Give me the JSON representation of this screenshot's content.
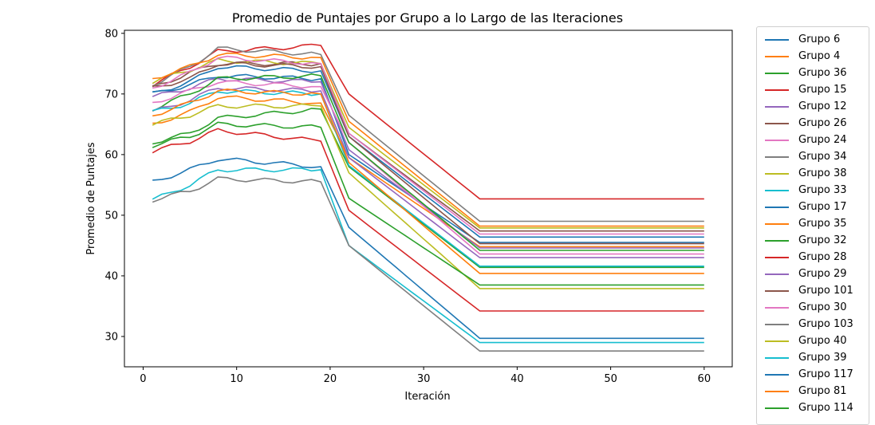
{
  "chart_data": {
    "type": "line",
    "title": "Promedio de Puntajes por Grupo a lo Largo de las Iteraciones",
    "xlabel": "Iteración",
    "ylabel": "Promedio de Puntajes",
    "xlim": [
      -2,
      63
    ],
    "ylim": [
      25,
      80.5
    ],
    "xticks": [
      0,
      10,
      20,
      30,
      40,
      50,
      60
    ],
    "yticks": [
      30,
      40,
      50,
      60,
      70,
      80
    ],
    "grid": false,
    "legend_position": "outside-right",
    "series": [
      {
        "name": "Grupo 6",
        "color": "#1f77b4",
        "base": [
          70,
          71.5,
          73,
          72.5,
          60,
          52.5
        ],
        "final": 45.5
      },
      {
        "name": "Grupo 4",
        "color": "#ff7f0e",
        "base": [
          65,
          67,
          69.5,
          68.5,
          59.5,
          51.5
        ],
        "final": 44.8
      },
      {
        "name": "Grupo 36",
        "color": "#2ca02c",
        "base": [
          62,
          63.5,
          66,
          67.5,
          58,
          48.5
        ],
        "final": 41.4
      },
      {
        "name": "Grupo 15",
        "color": "#d62728",
        "base": [
          71.5,
          74.5,
          77,
          78,
          70,
          60
        ],
        "final": 52.7
      },
      {
        "name": "Grupo 12",
        "color": "#9467bd",
        "base": [
          69.5,
          71,
          72.5,
          72,
          60.8,
          51.7
        ],
        "final": 44.6
      },
      {
        "name": "Grupo 26",
        "color": "#8c564b",
        "base": [
          71,
          73.5,
          75,
          75,
          63.5,
          54.5
        ],
        "final": 47.4
      },
      {
        "name": "Grupo 24",
        "color": "#e377c2",
        "base": [
          68.5,
          70.5,
          72,
          71.2,
          62,
          50.5
        ],
        "final": 43.6
      },
      {
        "name": "Grupo 34",
        "color": "#7f7f7f",
        "base": [
          71.5,
          74.5,
          77.5,
          76.5,
          66.5,
          56
        ],
        "final": 49.0
      },
      {
        "name": "Grupo 38",
        "color": "#bcbd22",
        "base": [
          72,
          74,
          75.5,
          75,
          64.5,
          54.8
        ],
        "final": 47.9
      },
      {
        "name": "Grupo 33",
        "color": "#17becf",
        "base": [
          52.5,
          55,
          57.5,
          57.5,
          45,
          36.2
        ],
        "final": 29.0
      },
      {
        "name": "Grupo 17",
        "color": "#1f77b4",
        "base": [
          70,
          72,
          74.5,
          73.8,
          63,
          53.5
        ],
        "final": 46.4
      },
      {
        "name": "Grupo 35",
        "color": "#ff7f0e",
        "base": [
          72.5,
          74.5,
          76.5,
          76,
          65.5,
          55.2
        ],
        "final": 48.2
      },
      {
        "name": "Grupo 32",
        "color": "#2ca02c",
        "base": [
          67.5,
          70,
          72.5,
          73,
          62,
          51.5
        ],
        "final": 44.2
      },
      {
        "name": "Grupo 28",
        "color": "#d62728",
        "base": [
          60.5,
          62.2,
          64,
          62.2,
          50.8,
          41.2
        ],
        "final": 34.2
      },
      {
        "name": "Grupo 29",
        "color": "#9467bd",
        "base": [
          67,
          69,
          71,
          70.5,
          59.5,
          50.2
        ],
        "final": 43.0
      },
      {
        "name": "Grupo 101",
        "color": "#8c564b",
        "base": [
          71,
          72.5,
          75,
          74.5,
          63,
          52.5
        ],
        "final": 45.3
      },
      {
        "name": "Grupo 30",
        "color": "#e377c2",
        "base": [
          71,
          73.5,
          76,
          75,
          63.5,
          54
        ],
        "final": 46.9
      },
      {
        "name": "Grupo 103",
        "color": "#7f7f7f",
        "base": [
          52.5,
          54,
          56,
          55.5,
          45,
          34.8
        ],
        "final": 27.6
      },
      {
        "name": "Grupo 40",
        "color": "#bcbd22",
        "base": [
          65,
          66.5,
          68,
          68,
          57,
          45
        ],
        "final": 37.9
      },
      {
        "name": "Grupo 39",
        "color": "#17becf",
        "base": [
          67,
          68.5,
          70.5,
          70,
          58.2,
          48.5
        ],
        "final": 41.6
      },
      {
        "name": "Grupo 117",
        "color": "#1f77b4",
        "base": [
          55.5,
          57.5,
          59.3,
          58,
          48,
          36.8
        ],
        "final": 29.7
      },
      {
        "name": "Grupo 81",
        "color": "#ff7f0e",
        "base": [
          66.5,
          68.5,
          70.5,
          70,
          58.7,
          47.5
        ],
        "final": 40.4
      },
      {
        "name": "Grupo 114",
        "color": "#2ca02c",
        "base": [
          61.5,
          63,
          65,
          64.5,
          52.8,
          45.5
        ],
        "final": 38.5
      }
    ],
    "shape_note": "x = 1..60; profile rises until ~x=8, dips to ~x=19, bumps at ~x=22, declines to x=36, flat thereafter"
  }
}
